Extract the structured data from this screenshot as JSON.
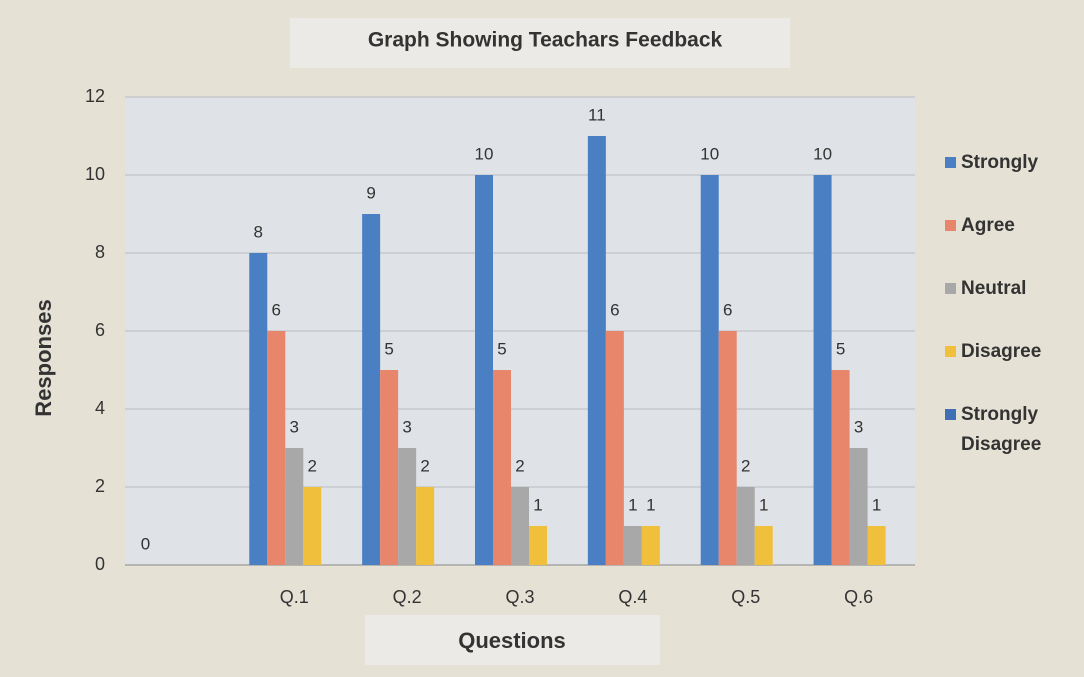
{
  "chart_data": {
    "type": "bar",
    "title": "Graph Showing Teachars Feedback",
    "x_label": "Questions",
    "y_label": "Responses",
    "categories": [
      null,
      "Q.1",
      "Q.2",
      "Q.3",
      "Q.4",
      "Q.5",
      "Q.6"
    ],
    "series": [
      {
        "name": "Strongly",
        "color": "#4a7fc4",
        "values": [
          0,
          8,
          9,
          10,
          11,
          10,
          10
        ]
      },
      {
        "name": "Agree",
        "color": "#e8866c",
        "values": [
          null,
          6,
          5,
          5,
          6,
          6,
          5
        ]
      },
      {
        "name": "Neutral",
        "color": "#a8a8a8",
        "values": [
          null,
          3,
          3,
          2,
          1,
          2,
          3
        ]
      },
      {
        "name": "Disagree",
        "color": "#f0c03c",
        "values": [
          null,
          2,
          2,
          1,
          1,
          1,
          1
        ]
      },
      {
        "name": "Strongly Disagree",
        "color": "#3f6fb4",
        "values": [
          null,
          null,
          null,
          null,
          null,
          null,
          null
        ]
      }
    ],
    "ylim": [
      0,
      12
    ],
    "yticks": [
      0,
      2,
      4,
      6,
      8,
      10,
      12
    ],
    "grid": true,
    "legend": "right"
  }
}
